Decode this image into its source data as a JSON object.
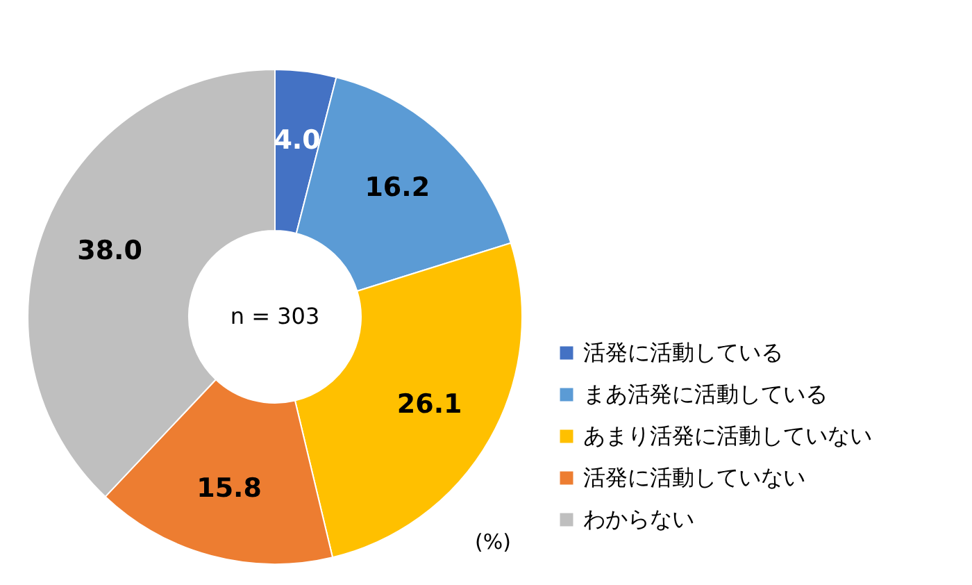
{
  "chart_data": {
    "type": "donut",
    "categories": [
      "活発に活動している",
      "まあ活発に活動している",
      "あまり活発に活動していない",
      "活発に活動していない",
      "わからない"
    ],
    "values": [
      4.0,
      16.2,
      26.1,
      15.8,
      38.0
    ],
    "colors": [
      "#4472c4",
      "#5b9bd5",
      "#ffc000",
      "#ed7d31",
      "#bfbfbf"
    ],
    "value_labels": [
      "4.0",
      "16.2",
      "26.1",
      "15.8",
      "38.0"
    ],
    "legend": "right",
    "annotations": [
      "n = 303",
      "(%)"
    ]
  }
}
